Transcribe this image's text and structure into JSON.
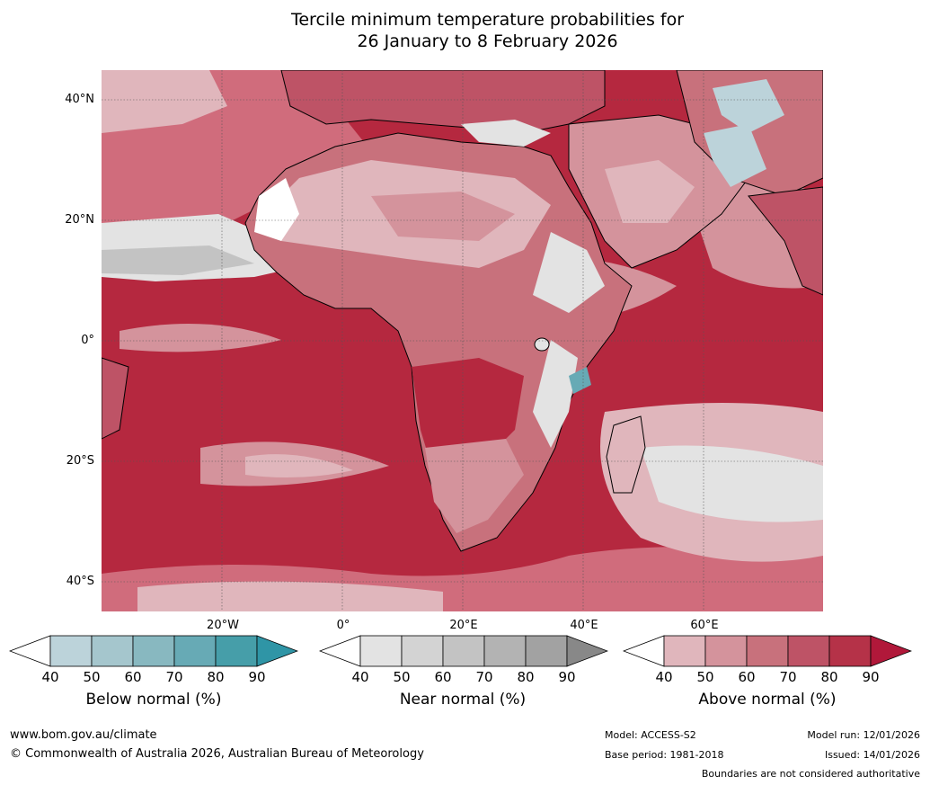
{
  "title_line1": "Tercile minimum temperature probabilities for",
  "title_line2": "26 January to 8 February 2026",
  "lat_labels": [
    "40°N",
    "20°N",
    "0°",
    "20°S",
    "40°S"
  ],
  "lon_labels": [
    "20°W",
    "0°",
    "20°E",
    "40°E",
    "60°E"
  ],
  "colorbars": [
    {
      "title": "Below normal (%)",
      "ticks": [
        "40",
        "50",
        "60",
        "70",
        "80",
        "90"
      ],
      "colors": [
        "#bcd3da",
        "#a5c6cd",
        "#88b8c0",
        "#67aab5",
        "#469ea9"
      ],
      "extend": "#2f95a6"
    },
    {
      "title": "Near normal (%)",
      "ticks": [
        "40",
        "50",
        "60",
        "70",
        "80",
        "90"
      ],
      "colors": [
        "#e3e3e3",
        "#d3d3d3",
        "#c3c3c3",
        "#b3b3b3",
        "#a2a2a2"
      ],
      "extend": "#888888"
    },
    {
      "title": "Above normal (%)",
      "ticks": [
        "40",
        "50",
        "60",
        "70",
        "80",
        "90"
      ],
      "colors": [
        "#e0b6bc",
        "#d4939c",
        "#c8717c",
        "#be5366",
        "#b53248"
      ],
      "extend": "#b1183a"
    }
  ],
  "footer": {
    "url": "www.bom.gov.au/climate",
    "copyright": "© Commonwealth of Australia 2026, Australian Bureau of Meteorology",
    "model": "Model: ACCESS-S2",
    "base_period": "Base period: 1981-2018",
    "model_run": "Model run: 12/01/2026",
    "issued": "Issued: 14/01/2026",
    "disclaimer": "Boundaries are not considered authoritative"
  }
}
